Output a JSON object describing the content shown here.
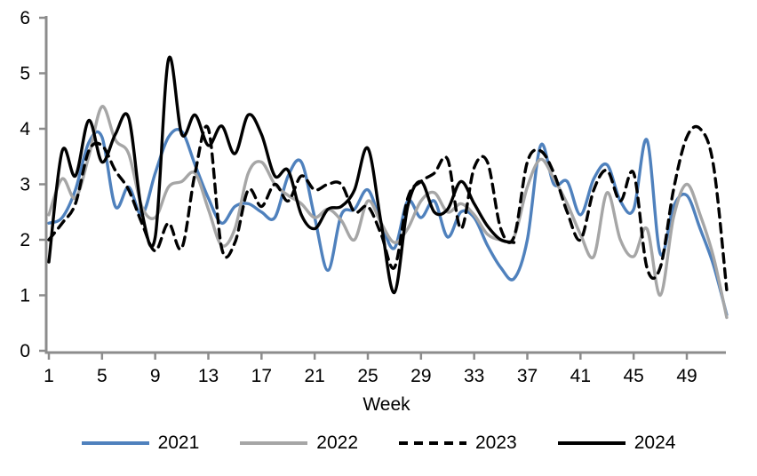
{
  "chart_data": {
    "type": "line",
    "title": "",
    "xlabel": "Week",
    "ylabel": "",
    "xlim": [
      1,
      52
    ],
    "ylim": [
      0,
      6
    ],
    "x_ticks": [
      1,
      5,
      9,
      13,
      17,
      21,
      25,
      29,
      33,
      37,
      41,
      45,
      49
    ],
    "y_ticks": [
      0,
      1,
      2,
      3,
      4,
      5,
      6
    ],
    "grid": false,
    "smoothed": true,
    "axis_color": "#8C8C8C",
    "text_color": "#000000",
    "legend_position": "bottom",
    "series": [
      {
        "name": "2021",
        "color": "#4F81BD",
        "style": "solid",
        "start_week": 1,
        "values": [
          2.3,
          2.4,
          2.9,
          3.75,
          3.85,
          2.6,
          2.95,
          2.45,
          3.2,
          3.85,
          3.95,
          3.35,
          2.75,
          2.3,
          2.6,
          2.65,
          2.5,
          2.4,
          3.15,
          3.4,
          2.4,
          1.45,
          2.45,
          2.55,
          2.9,
          2.3,
          1.85,
          2.7,
          2.4,
          2.7,
          2.05,
          2.5,
          2.4,
          1.9,
          1.5,
          1.3,
          2.0,
          3.7,
          3.0,
          3.05,
          2.45,
          3.1,
          3.35,
          2.7,
          2.55,
          3.8,
          1.75,
          2.6,
          2.8,
          2.2,
          1.55,
          0.65
        ]
      },
      {
        "name": "2022",
        "color": "#A6A6A6",
        "style": "solid",
        "start_week": 1,
        "values": [
          2.45,
          3.1,
          2.75,
          3.5,
          4.4,
          3.8,
          3.55,
          2.6,
          2.4,
          2.95,
          3.05,
          3.2,
          2.55,
          1.9,
          2.2,
          3.2,
          3.4,
          3.0,
          2.8,
          2.65,
          2.4,
          2.55,
          2.35,
          2.0,
          2.7,
          2.3,
          1.95,
          2.2,
          2.7,
          2.85,
          2.5,
          2.65,
          2.45,
          2.1,
          2.0,
          2.05,
          2.95,
          3.45,
          3.1,
          2.65,
          2.1,
          1.7,
          2.85,
          2.0,
          1.7,
          2.2,
          1.0,
          2.4,
          3.0,
          2.45,
          1.7,
          0.6
        ]
      },
      {
        "name": "2023",
        "color": "#000000",
        "style": "dashed",
        "start_week": 1,
        "values": [
          2.0,
          2.3,
          2.65,
          3.6,
          3.7,
          3.25,
          2.9,
          2.3,
          1.8,
          2.3,
          1.85,
          3.2,
          4.0,
          1.85,
          1.95,
          2.9,
          2.6,
          3.0,
          2.7,
          3.15,
          2.9,
          3.0,
          3.0,
          2.5,
          2.6,
          2.1,
          1.5,
          2.75,
          3.05,
          3.2,
          3.45,
          2.2,
          3.3,
          3.4,
          2.2,
          2.05,
          3.4,
          3.6,
          3.2,
          2.5,
          2.0,
          2.9,
          3.25,
          2.7,
          3.2,
          1.5,
          1.5,
          2.9,
          3.85,
          4.0,
          3.35,
          1.1
        ]
      },
      {
        "name": "2024",
        "color": "#000000",
        "style": "solid",
        "start_week": 1,
        "values": [
          1.6,
          3.6,
          3.15,
          4.15,
          3.4,
          3.9,
          4.2,
          2.5,
          2.05,
          5.25,
          3.9,
          4.25,
          3.7,
          4.05,
          3.55,
          4.25,
          3.9,
          3.15,
          3.25,
          2.45,
          2.2,
          2.55,
          2.6,
          2.9,
          3.65,
          2.3,
          1.05,
          2.6,
          3.05,
          2.5,
          2.55,
          3.05,
          2.65,
          2.25,
          2.0,
          1.95
        ]
      }
    ]
  }
}
